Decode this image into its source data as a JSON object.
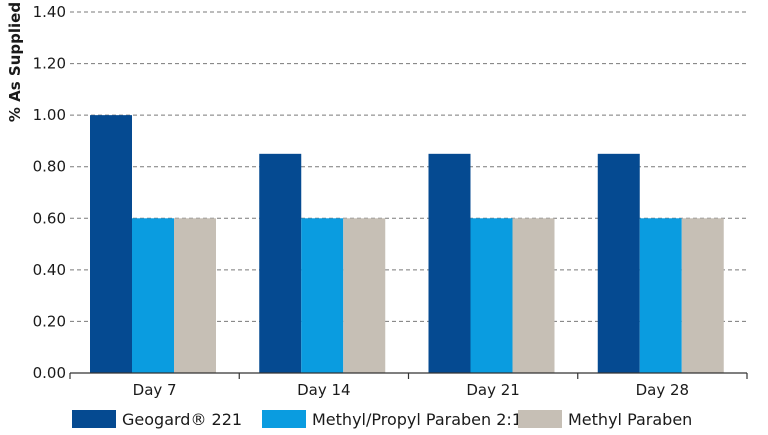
{
  "chart_data": {
    "type": "bar",
    "categories": [
      "Day 7",
      "Day 14",
      "Day 21",
      "Day 28"
    ],
    "series": [
      {
        "name": "Geogard® 221",
        "values": [
          1.0,
          0.85,
          0.85,
          0.85
        ],
        "color": "#054a91"
      },
      {
        "name": "Methyl/Propyl Paraben 2:1",
        "values": [
          0.6,
          0.6,
          0.6,
          0.6
        ],
        "color": "#0a9ce0"
      },
      {
        "name": "Methyl Paraben",
        "values": [
          0.6,
          0.6,
          0.6,
          0.6
        ],
        "color": "#c6bfb5"
      }
    ],
    "xlabel": "",
    "ylabel": "% As Supplied",
    "ylim": [
      0,
      1.4
    ],
    "yticks": [
      "0.00",
      "0.20",
      "0.40",
      "0.60",
      "0.80",
      "1.00",
      "1.20",
      "1.40"
    ],
    "grid": "horizontal dashed",
    "legend_position": "bottom"
  }
}
